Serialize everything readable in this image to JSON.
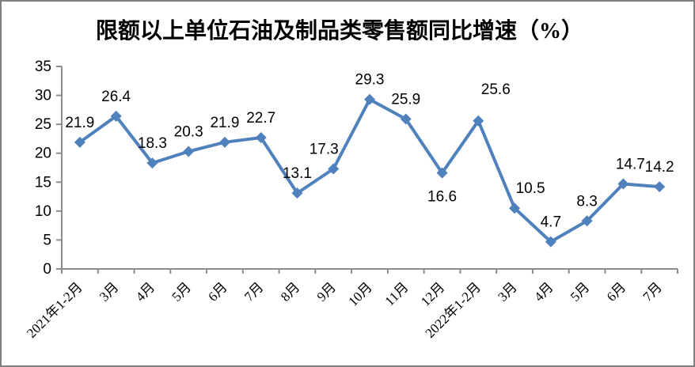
{
  "frame": {
    "border_color": "#808080",
    "background_color": "#ffffff"
  },
  "chart_data": {
    "type": "line",
    "title": "限额以上单位石油及制品类零售额同比增速（%）",
    "categories": [
      "2021年1-2月",
      "3月",
      "4月",
      "5月",
      "6月",
      "7月",
      "8月",
      "9月",
      "10月",
      "11月",
      "12月",
      "2022年1-2月",
      "3月",
      "4月",
      "5月",
      "6月",
      "7月"
    ],
    "values": [
      21.9,
      26.4,
      18.3,
      20.3,
      21.9,
      22.7,
      13.1,
      17.3,
      29.3,
      25.9,
      16.6,
      25.6,
      10.5,
      4.7,
      8.3,
      14.7,
      14.2
    ],
    "data_labels": [
      "21.9",
      "26.4",
      "18.3",
      "20.3",
      "21.9",
      "22.7",
      "13.1",
      "17.3",
      "29.3",
      "25.9",
      "16.6",
      "25.6",
      "10.5",
      "4.7",
      "8.3",
      "14.7",
      "14.2"
    ],
    "label_below_indices": [
      10
    ],
    "ylim": [
      0,
      35
    ],
    "yticks": [
      0,
      5,
      10,
      15,
      20,
      25,
      30,
      35
    ],
    "xlabel": "",
    "ylabel": "",
    "grid": false,
    "legend_position": "none",
    "line_color": "#4F81BD",
    "marker": "diamond",
    "axis_color": "#8C8C8C",
    "text_color": "#000000"
  }
}
